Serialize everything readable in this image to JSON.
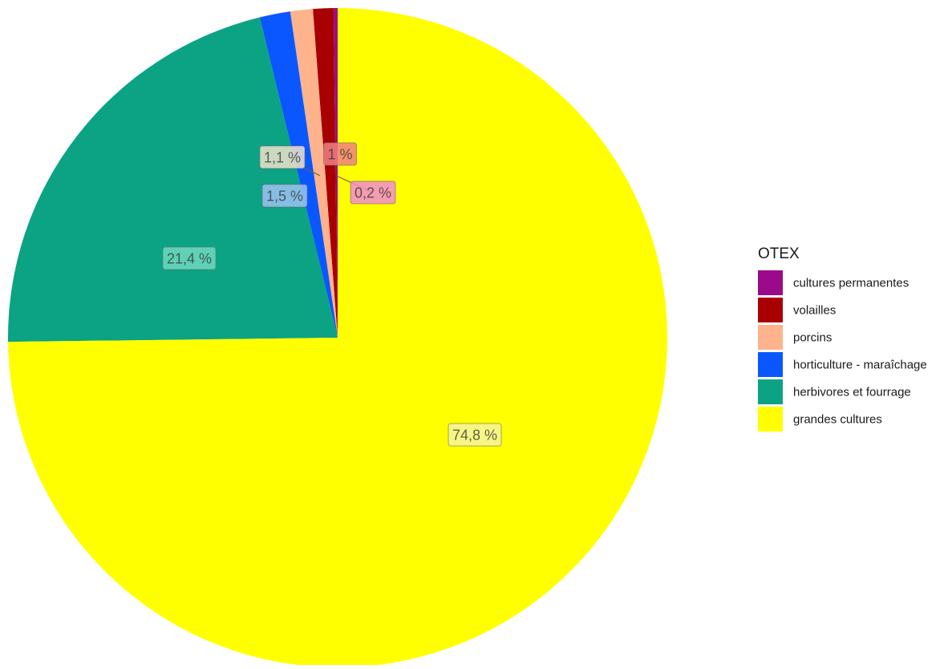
{
  "chart_data": {
    "type": "pie",
    "legend_title": "OTEX",
    "legend_position": "right",
    "slices": [
      {
        "name": "cultures permanentes",
        "value": 0.2,
        "label": "0,2 %",
        "color": "#9B0A8B",
        "label_fill": "#F28CD0"
      },
      {
        "name": "volailles",
        "value": 1.0,
        "label": "1 %",
        "color": "#A80000",
        "label_fill": "#F08080"
      },
      {
        "name": "porcins",
        "value": 1.1,
        "label": "1,1 %",
        "color": "#FFB38C",
        "label_fill": "#EFE3CC"
      },
      {
        "name": "horticulture - maraîchage",
        "value": 1.5,
        "label": "1,5 %",
        "color": "#0A57FF",
        "label_fill": "#9CC3F5"
      },
      {
        "name": "herbivores et fourrage",
        "value": 21.4,
        "label": "21,4 %",
        "color": "#0BA383",
        "label_fill": "#6FD9C0"
      },
      {
        "name": "grandes cultures",
        "value": 74.8,
        "label": "74,8 %",
        "color": "#FFFF00",
        "label_fill": "#F6F59C"
      }
    ]
  }
}
